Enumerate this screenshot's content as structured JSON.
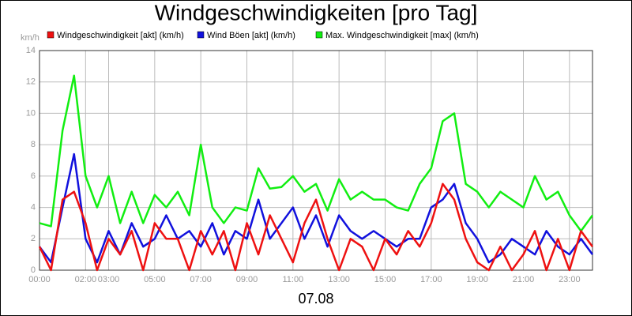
{
  "chart_data": {
    "type": "line",
    "title": "Windgeschwindigkeiten [pro Tag]",
    "y_unit": "km/h",
    "x_label": "07.08",
    "x": [
      0,
      0.5,
      1,
      1.5,
      2,
      2.5,
      3,
      3.5,
      4,
      4.5,
      5,
      5.5,
      6,
      6.5,
      7,
      7.5,
      8,
      8.5,
      9,
      9.5,
      10,
      10.5,
      11,
      11.5,
      12,
      12.5,
      13,
      13.5,
      14,
      14.5,
      15,
      15.5,
      16,
      16.5,
      17,
      17.5,
      18,
      18.5,
      19,
      19.5,
      20,
      20.5,
      21,
      21.5,
      22,
      22.5,
      23,
      23.5,
      24
    ],
    "series": [
      {
        "name": "Windgeschwindigkeit [akt] (km/h)",
        "color": "#ee1111",
        "values": [
          1.5,
          0,
          4.5,
          5,
          3,
          0,
          2,
          1,
          2.5,
          0,
          3,
          2,
          2,
          0,
          2.5,
          1,
          2.5,
          0,
          3,
          1,
          3.5,
          2,
          0.5,
          3,
          4.5,
          2,
          0,
          2,
          1.5,
          0,
          2,
          1,
          2.5,
          1.5,
          3,
          5.5,
          4.5,
          2,
          0.5,
          0,
          1.5,
          0,
          1,
          2.5,
          0,
          2,
          0,
          2.5,
          1.5
        ]
      },
      {
        "name": "Wind Böen [akt] (km/h)",
        "color": "#1111dd",
        "values": [
          1.5,
          0.5,
          4,
          7.4,
          2,
          0.5,
          2.5,
          1,
          3,
          1.5,
          2,
          3.5,
          2,
          2.5,
          1.5,
          3,
          1,
          2.5,
          2,
          4.5,
          2,
          3,
          4,
          2,
          3.5,
          1.5,
          3.5,
          2.5,
          2,
          2.5,
          2,
          1.5,
          2,
          2,
          4,
          4.5,
          5.5,
          3,
          2,
          0.5,
          1,
          2,
          1.5,
          1,
          2.5,
          1.5,
          1,
          2,
          1
        ]
      },
      {
        "name": "Max. Windgeschwindigkeit [max] (km/h)",
        "color": "#11ee11",
        "values": [
          3,
          2.8,
          8.9,
          12.4,
          6,
          4,
          6,
          3,
          5,
          3,
          4.8,
          4,
          5,
          3.5,
          8,
          4,
          3,
          4,
          3.8,
          6.5,
          5.2,
          5.3,
          6,
          5,
          5.5,
          3.8,
          5.8,
          4.5,
          5,
          4.5,
          4.5,
          4,
          3.8,
          5.5,
          6.5,
          9.5,
          10,
          5.5,
          5,
          4,
          5,
          4.5,
          4,
          6,
          4.5,
          5,
          3.5,
          2.5,
          3.5
        ]
      }
    ],
    "xlim": [
      0,
      24
    ],
    "xticks": [
      {
        "value": 0,
        "label": "00:00"
      },
      {
        "value": 2,
        "label": "02:00"
      },
      {
        "value": 3,
        "label": "03:00"
      },
      {
        "value": 5,
        "label": "05:00"
      },
      {
        "value": 7,
        "label": "07:00"
      },
      {
        "value": 9,
        "label": "09:00"
      },
      {
        "value": 11,
        "label": "11:00"
      },
      {
        "value": 13,
        "label": "13:00"
      },
      {
        "value": 15,
        "label": "15:00"
      },
      {
        "value": 17,
        "label": "17:00"
      },
      {
        "value": 19,
        "label": "19:00"
      },
      {
        "value": 21,
        "label": "21:00"
      },
      {
        "value": 23,
        "label": "23:00"
      }
    ],
    "ylim": [
      0,
      14
    ],
    "yticks": [
      0,
      2,
      4,
      6,
      8,
      10,
      12,
      14
    ],
    "grid": true
  }
}
